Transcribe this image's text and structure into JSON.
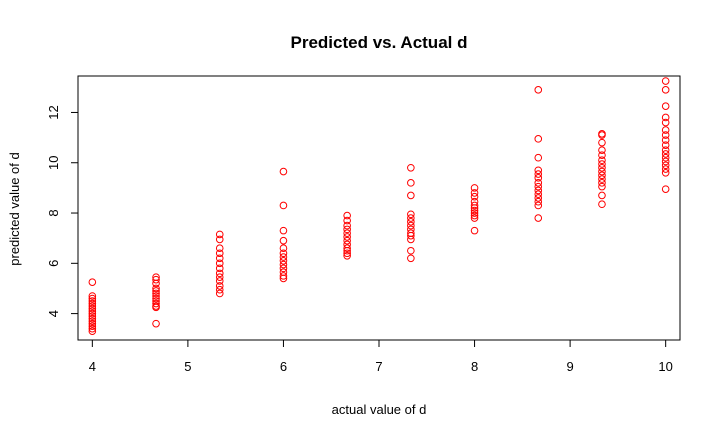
{
  "chart_data": {
    "type": "scatter",
    "title": "Predicted vs. Actual d",
    "xlabel": "actual value of d",
    "ylabel": "predicted value of d",
    "xlim": [
      3.85,
      10.15
    ],
    "ylim": [
      2.95,
      13.45
    ],
    "x_ticks": [
      4,
      5,
      6,
      7,
      8,
      9,
      10
    ],
    "y_ticks": [
      4,
      6,
      8,
      10,
      12
    ],
    "grid": false,
    "legend": "none",
    "marker": "open-circle",
    "color": "#ff0000",
    "points": [
      [
        4,
        5.25
      ],
      [
        4,
        4.7
      ],
      [
        4,
        4.6
      ],
      [
        4,
        4.5
      ],
      [
        4,
        4.4
      ],
      [
        4,
        4.3
      ],
      [
        4,
        4.2
      ],
      [
        4,
        4.1
      ],
      [
        4,
        4.0
      ],
      [
        4,
        3.9
      ],
      [
        4,
        3.8
      ],
      [
        4,
        3.7
      ],
      [
        4,
        3.6
      ],
      [
        4,
        3.5
      ],
      [
        4,
        3.4
      ],
      [
        4,
        3.3
      ],
      [
        4.6667,
        5.45
      ],
      [
        4.6667,
        5.35
      ],
      [
        4.6667,
        5.2
      ],
      [
        4.6667,
        5.0
      ],
      [
        4.6667,
        4.9
      ],
      [
        4.6667,
        4.8
      ],
      [
        4.6667,
        4.7
      ],
      [
        4.6667,
        4.6
      ],
      [
        4.6667,
        4.5
      ],
      [
        4.6667,
        4.4
      ],
      [
        4.6667,
        4.3
      ],
      [
        4.6667,
        4.25
      ],
      [
        4.6667,
        3.6
      ],
      [
        5.3333,
        7.15
      ],
      [
        5.3333,
        6.95
      ],
      [
        5.3333,
        6.6
      ],
      [
        5.3333,
        6.4
      ],
      [
        5.3333,
        6.2
      ],
      [
        5.3333,
        6.0
      ],
      [
        5.3333,
        5.8
      ],
      [
        5.3333,
        5.6
      ],
      [
        5.3333,
        5.45
      ],
      [
        5.3333,
        5.3
      ],
      [
        5.3333,
        5.1
      ],
      [
        5.3333,
        4.95
      ],
      [
        5.3333,
        4.8
      ],
      [
        6,
        9.65
      ],
      [
        6,
        8.3
      ],
      [
        6,
        7.3
      ],
      [
        6,
        6.9
      ],
      [
        6,
        6.6
      ],
      [
        6,
        6.4
      ],
      [
        6,
        6.25
      ],
      [
        6,
        6.1
      ],
      [
        6,
        5.95
      ],
      [
        6,
        5.8
      ],
      [
        6,
        5.65
      ],
      [
        6,
        5.5
      ],
      [
        6,
        5.4
      ],
      [
        6.6667,
        7.9
      ],
      [
        6.6667,
        7.7
      ],
      [
        6.6667,
        7.5
      ],
      [
        6.6667,
        7.35
      ],
      [
        6.6667,
        7.2
      ],
      [
        6.6667,
        7.05
      ],
      [
        6.6667,
        6.9
      ],
      [
        6.6667,
        6.75
      ],
      [
        6.6667,
        6.6
      ],
      [
        6.6667,
        6.5
      ],
      [
        6.6667,
        6.4
      ],
      [
        6.6667,
        6.3
      ],
      [
        7.3333,
        9.8
      ],
      [
        7.3333,
        9.2
      ],
      [
        7.3333,
        8.7
      ],
      [
        7.3333,
        7.95
      ],
      [
        7.3333,
        7.8
      ],
      [
        7.3333,
        7.65
      ],
      [
        7.3333,
        7.5
      ],
      [
        7.3333,
        7.35
      ],
      [
        7.3333,
        7.2
      ],
      [
        7.3333,
        7.1
      ],
      [
        7.3333,
        6.95
      ],
      [
        7.3333,
        6.5
      ],
      [
        7.3333,
        6.2
      ],
      [
        8,
        9.0
      ],
      [
        8,
        8.8
      ],
      [
        8,
        8.65
      ],
      [
        8,
        8.45
      ],
      [
        8,
        8.3
      ],
      [
        8,
        8.2
      ],
      [
        8,
        8.1
      ],
      [
        8,
        8.0
      ],
      [
        8,
        7.9
      ],
      [
        8,
        7.8
      ],
      [
        8,
        7.3
      ],
      [
        8.6667,
        12.9
      ],
      [
        8.6667,
        10.95
      ],
      [
        8.6667,
        10.2
      ],
      [
        8.6667,
        9.7
      ],
      [
        8.6667,
        9.55
      ],
      [
        8.6667,
        9.4
      ],
      [
        8.6667,
        9.2
      ],
      [
        8.6667,
        9.05
      ],
      [
        8.6667,
        8.9
      ],
      [
        8.6667,
        8.75
      ],
      [
        8.6667,
        8.6
      ],
      [
        8.6667,
        8.45
      ],
      [
        8.6667,
        8.3
      ],
      [
        8.6667,
        7.8
      ],
      [
        9.3333,
        11.15
      ],
      [
        9.3333,
        11.1
      ],
      [
        9.3333,
        10.8
      ],
      [
        9.3333,
        10.5
      ],
      [
        9.3333,
        10.3
      ],
      [
        9.3333,
        10.1
      ],
      [
        9.3333,
        9.95
      ],
      [
        9.3333,
        9.8
      ],
      [
        9.3333,
        9.65
      ],
      [
        9.3333,
        9.5
      ],
      [
        9.3333,
        9.35
      ],
      [
        9.3333,
        9.2
      ],
      [
        9.3333,
        9.05
      ],
      [
        9.3333,
        8.7
      ],
      [
        9.3333,
        8.35
      ],
      [
        10,
        13.25
      ],
      [
        10,
        12.9
      ],
      [
        10,
        12.25
      ],
      [
        10,
        11.8
      ],
      [
        10,
        11.6
      ],
      [
        10,
        11.3
      ],
      [
        10,
        11.1
      ],
      [
        10,
        10.9
      ],
      [
        10,
        10.7
      ],
      [
        10,
        10.5
      ],
      [
        10,
        10.35
      ],
      [
        10,
        10.2
      ],
      [
        10,
        10.05
      ],
      [
        10,
        9.9
      ],
      [
        10,
        9.75
      ],
      [
        10,
        9.6
      ],
      [
        10,
        8.95
      ]
    ]
  }
}
